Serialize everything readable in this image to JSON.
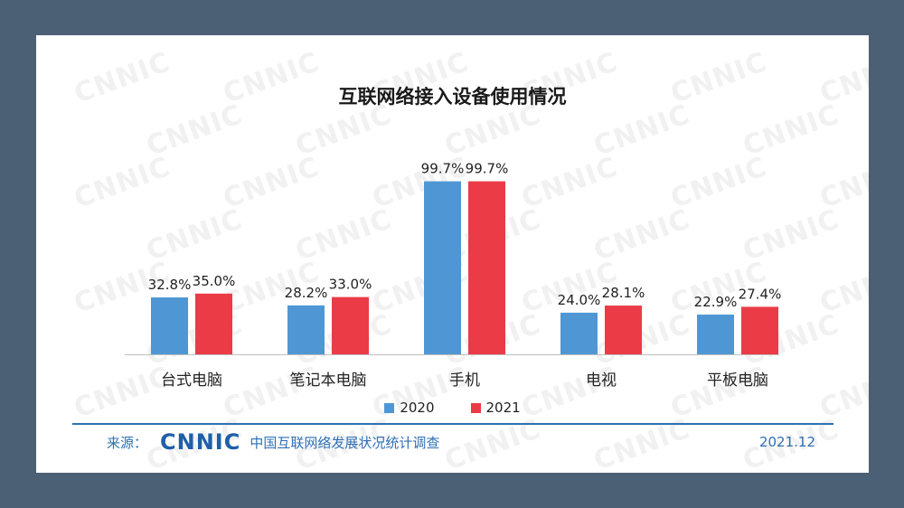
{
  "slide": {
    "watermark_text": "CNNIC",
    "footer": {
      "source_label": "来源：",
      "logo_text": "CNNIC",
      "survey_name": "中国互联网络发展状况统计调查",
      "date": "2021.12"
    }
  },
  "chart_data": {
    "type": "bar",
    "title": "互联网络接入设备使用情况",
    "categories": [
      "台式电脑",
      "笔记本电脑",
      "手机",
      "电视",
      "平板电脑"
    ],
    "series": [
      {
        "name": "2020",
        "color": "#4f97d4",
        "values": [
          32.8,
          28.2,
          99.7,
          24.0,
          22.9
        ]
      },
      {
        "name": "2021",
        "color": "#ea3b47",
        "values": [
          35.0,
          33.0,
          99.7,
          28.1,
          27.4
        ]
      }
    ],
    "value_labels": [
      [
        "32.8%",
        "28.2%",
        "99.7%",
        "24.0%",
        "22.9%"
      ],
      [
        "35.0%",
        "33.0%",
        "99.7%",
        "28.1%",
        "27.4%"
      ]
    ],
    "ylim": [
      0,
      100
    ],
    "grid": false,
    "legend_position": "bottom"
  }
}
